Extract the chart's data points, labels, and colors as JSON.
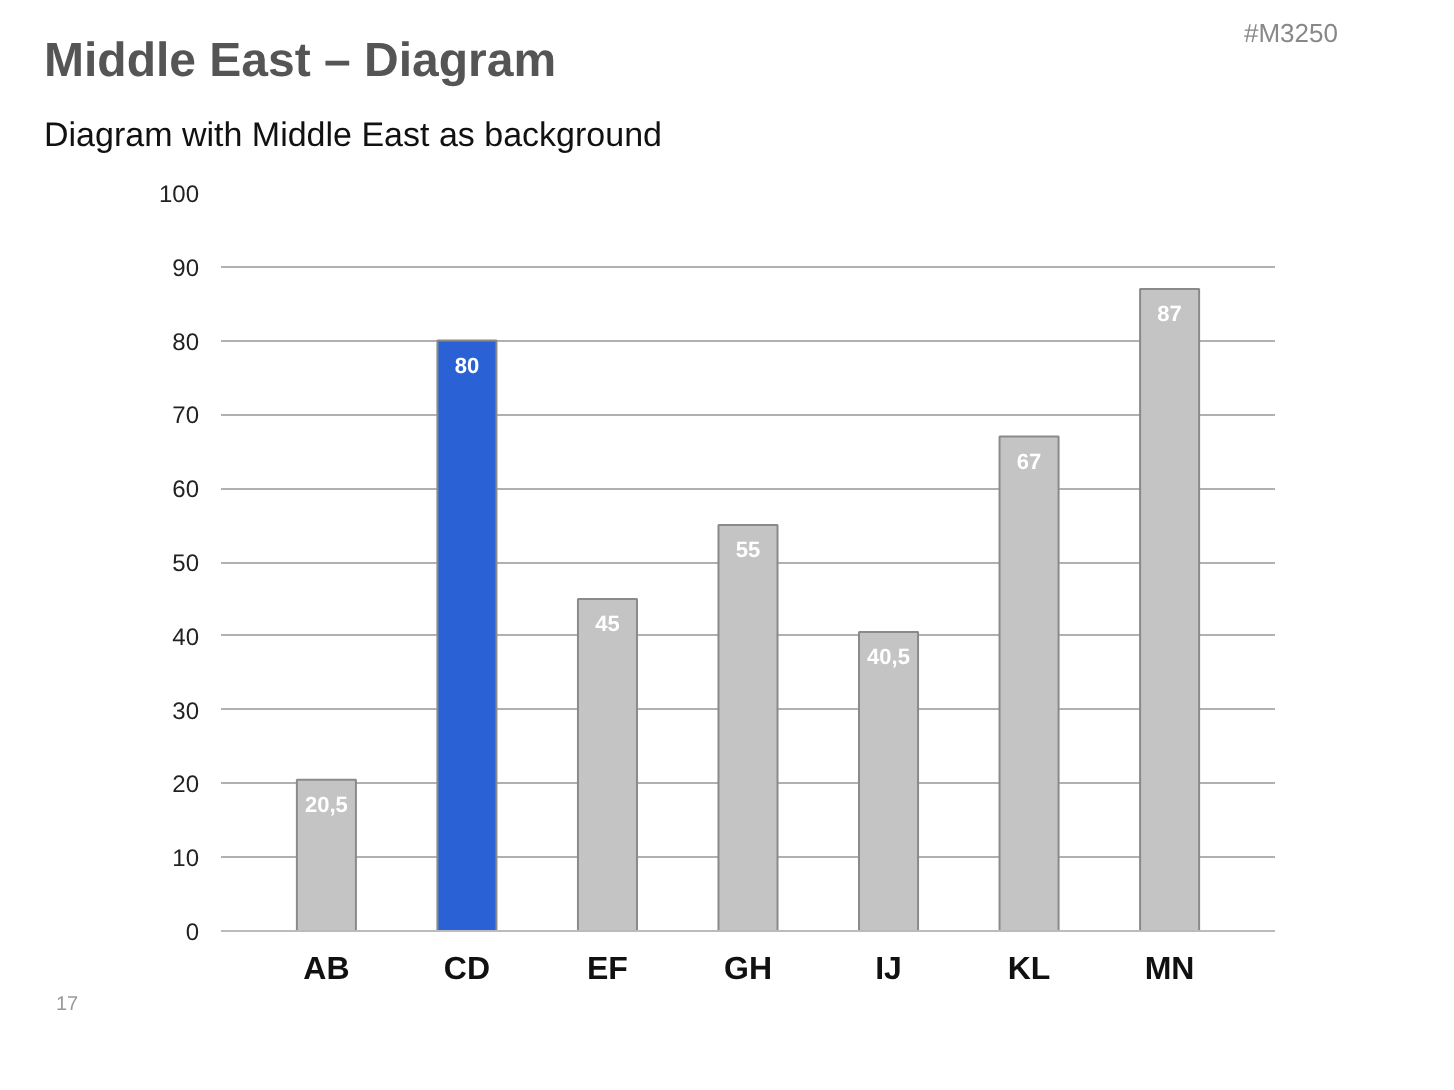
{
  "chart_data": {
    "type": "bar",
    "title": "Middle East – Diagram",
    "subtitle": "Diagram with Middle East as background",
    "categories": [
      "AB",
      "CD",
      "EF",
      "GH",
      "IJ",
      "KL",
      "MN"
    ],
    "values": [
      20.5,
      80,
      45,
      55,
      40.5,
      67,
      87
    ],
    "colors": [
      "#c4c4c4",
      "#2a62d6",
      "#c4c4c4",
      "#c4c4c4",
      "#c4c4c4",
      "#c4c4c4",
      "#c4c4c4"
    ],
    "value_labels": [
      "20,5",
      "80",
      "45",
      "55",
      "40,5",
      "67",
      "87"
    ],
    "ylim": [
      0,
      100
    ],
    "yticks": [
      0,
      10,
      20,
      30,
      40,
      50,
      60,
      70,
      80,
      90,
      100
    ],
    "grid": "y",
    "annotations": [
      "#M3250",
      "17"
    ]
  }
}
